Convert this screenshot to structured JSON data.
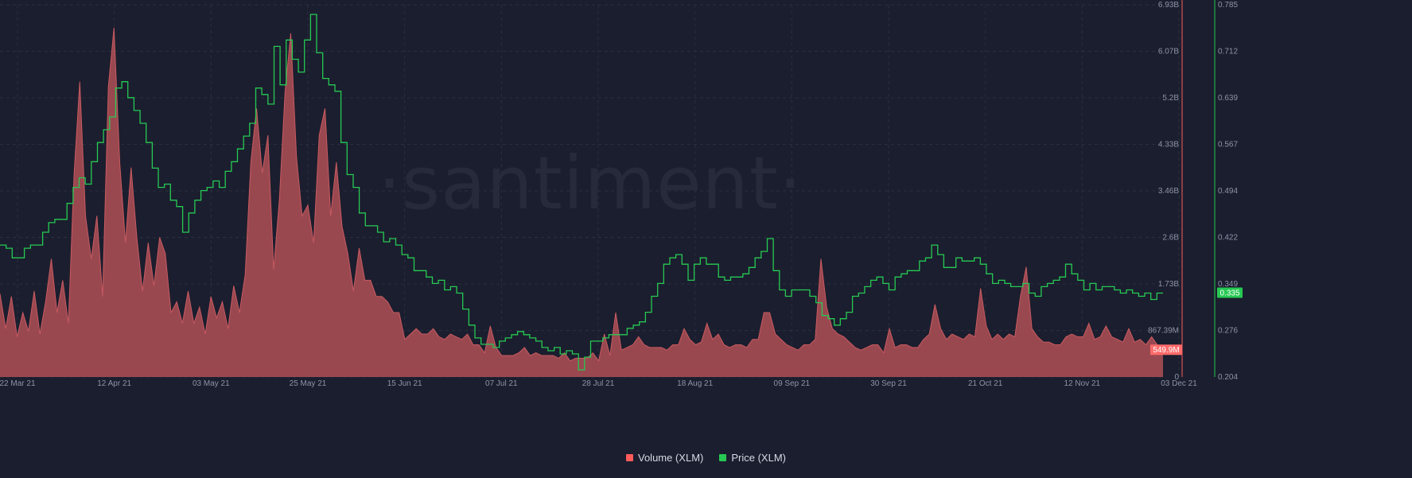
{
  "chart_data": {
    "type": "area+line",
    "watermark": "·santiment·",
    "x_ticks": [
      "22 Mar 21",
      "12 Apr 21",
      "03 May 21",
      "25 May 21",
      "15 Jun 21",
      "07 Jul 21",
      "28 Jul 21",
      "18 Aug 21",
      "09 Sep 21",
      "30 Sep 21",
      "21 Oct 21",
      "12 Nov 21",
      "03 Dec 21"
    ],
    "volume_axis": {
      "ticks": [
        "0",
        "867.39M",
        "1.73B",
        "2.6B",
        "3.46B",
        "4.33B",
        "5.2B",
        "6.07B",
        "6.93B"
      ],
      "range": [
        0,
        6930000000
      ],
      "current_label": "549.9M",
      "color": "#ff5b5b"
    },
    "price_axis": {
      "ticks": [
        "0.204",
        "0.276",
        "0.349",
        "0.422",
        "0.494",
        "0.567",
        "0.639",
        "0.712",
        "0.785"
      ],
      "range": [
        0.204,
        0.785
      ],
      "current_label": "0.335",
      "color": "#26c953"
    },
    "series": [
      {
        "name": "Volume (XLM)",
        "color": "#ff5b5b",
        "fill": "#a14b52",
        "values": [
          1.55,
          0.9,
          1.5,
          0.75,
          1.2,
          0.85,
          1.6,
          0.8,
          1.4,
          2.2,
          1.2,
          1.8,
          1.0,
          3.8,
          5.5,
          3.0,
          2.2,
          3.0,
          1.5,
          5.4,
          6.5,
          4.0,
          2.5,
          3.9,
          2.6,
          1.6,
          2.5,
          1.7,
          2.6,
          2.3,
          1.2,
          1.4,
          1.0,
          1.6,
          1.0,
          1.3,
          0.8,
          1.5,
          1.1,
          1.4,
          0.9,
          1.7,
          1.2,
          1.9,
          4.0,
          5.0,
          3.8,
          4.5,
          2.0,
          3.3,
          5.3,
          6.4,
          4.1,
          3.0,
          3.2,
          2.5,
          4.5,
          5.0,
          3.0,
          4.0,
          2.8,
          2.3,
          1.6,
          2.4,
          1.8,
          1.8,
          1.5,
          1.5,
          1.4,
          1.2,
          1.2,
          0.7,
          0.8,
          0.9,
          0.8,
          0.8,
          0.9,
          0.75,
          0.7,
          0.8,
          0.75,
          0.7,
          0.8,
          0.6,
          0.6,
          0.45,
          0.95,
          0.55,
          0.4,
          0.4,
          0.4,
          0.45,
          0.55,
          0.4,
          0.45,
          0.4,
          0.4,
          0.4,
          0.35,
          0.45,
          0.3,
          0.35,
          0.35,
          0.35,
          0.45,
          0.3,
          0.8,
          0.4,
          1.2,
          0.5,
          0.55,
          0.6,
          0.75,
          0.6,
          0.55,
          0.55,
          0.55,
          0.5,
          0.6,
          0.6,
          0.9,
          0.7,
          0.6,
          0.65,
          1.0,
          0.7,
          0.8,
          0.6,
          0.55,
          0.6,
          0.6,
          0.55,
          0.7,
          0.7,
          1.2,
          1.2,
          0.8,
          0.7,
          0.6,
          0.55,
          0.5,
          0.6,
          0.6,
          0.7,
          2.2,
          1.3,
          0.9,
          0.8,
          0.75,
          0.65,
          0.55,
          0.5,
          0.55,
          0.6,
          0.6,
          0.45,
          0.9,
          0.55,
          0.6,
          0.6,
          0.55,
          0.55,
          0.7,
          0.8,
          1.35,
          0.9,
          0.7,
          0.8,
          0.75,
          0.7,
          0.8,
          0.75,
          1.65,
          0.95,
          0.7,
          0.8,
          0.7,
          0.8,
          0.75,
          1.5,
          2.05,
          0.9,
          0.75,
          0.65,
          0.65,
          0.6,
          0.6,
          0.75,
          0.8,
          0.75,
          0.75,
          1.0,
          0.7,
          0.75,
          0.95,
          0.75,
          0.7,
          0.65,
          0.9,
          0.65,
          0.7,
          0.6,
          0.75,
          0.6,
          0.5
        ],
        "note": "values in billions"
      },
      {
        "name": "Price (XLM)",
        "color": "#26c953",
        "values": [
          0.41,
          0.405,
          0.39,
          0.39,
          0.405,
          0.41,
          0.41,
          0.43,
          0.445,
          0.45,
          0.45,
          0.475,
          0.5,
          0.515,
          0.505,
          0.54,
          0.57,
          0.59,
          0.61,
          0.655,
          0.665,
          0.64,
          0.62,
          0.6,
          0.57,
          0.53,
          0.5,
          0.505,
          0.48,
          0.47,
          0.43,
          0.46,
          0.48,
          0.495,
          0.5,
          0.51,
          0.5,
          0.525,
          0.54,
          0.56,
          0.58,
          0.6,
          0.655,
          0.645,
          0.63,
          0.72,
          0.66,
          0.73,
          0.7,
          0.68,
          0.73,
          0.77,
          0.71,
          0.67,
          0.66,
          0.65,
          0.57,
          0.52,
          0.5,
          0.46,
          0.44,
          0.44,
          0.43,
          0.415,
          0.42,
          0.41,
          0.395,
          0.39,
          0.37,
          0.37,
          0.36,
          0.35,
          0.355,
          0.34,
          0.345,
          0.335,
          0.31,
          0.285,
          0.265,
          0.255,
          0.255,
          0.25,
          0.26,
          0.265,
          0.27,
          0.275,
          0.27,
          0.265,
          0.26,
          0.25,
          0.245,
          0.25,
          0.24,
          0.245,
          0.24,
          0.215,
          0.235,
          0.26,
          0.26,
          0.265,
          0.27,
          0.27,
          0.27,
          0.28,
          0.285,
          0.29,
          0.305,
          0.33,
          0.35,
          0.38,
          0.39,
          0.395,
          0.38,
          0.355,
          0.38,
          0.39,
          0.38,
          0.38,
          0.36,
          0.355,
          0.36,
          0.36,
          0.365,
          0.375,
          0.39,
          0.4,
          0.42,
          0.37,
          0.34,
          0.33,
          0.34,
          0.34,
          0.34,
          0.33,
          0.32,
          0.3,
          0.295,
          0.285,
          0.295,
          0.305,
          0.33,
          0.335,
          0.345,
          0.355,
          0.36,
          0.35,
          0.34,
          0.36,
          0.365,
          0.37,
          0.37,
          0.385,
          0.39,
          0.41,
          0.395,
          0.375,
          0.375,
          0.39,
          0.385,
          0.385,
          0.39,
          0.38,
          0.365,
          0.35,
          0.355,
          0.35,
          0.345,
          0.345,
          0.35,
          0.335,
          0.33,
          0.345,
          0.35,
          0.355,
          0.36,
          0.38,
          0.365,
          0.355,
          0.34,
          0.35,
          0.34,
          0.345,
          0.345,
          0.34,
          0.335,
          0.34,
          0.335,
          0.33,
          0.335,
          0.325,
          0.335,
          0.335
        ]
      }
    ],
    "legend": [
      {
        "label": "Volume (XLM)",
        "color": "#ff5b5b"
      },
      {
        "label": "Price (XLM)",
        "color": "#26c953"
      }
    ],
    "legend_placement": "bottom-center",
    "grid": true
  }
}
